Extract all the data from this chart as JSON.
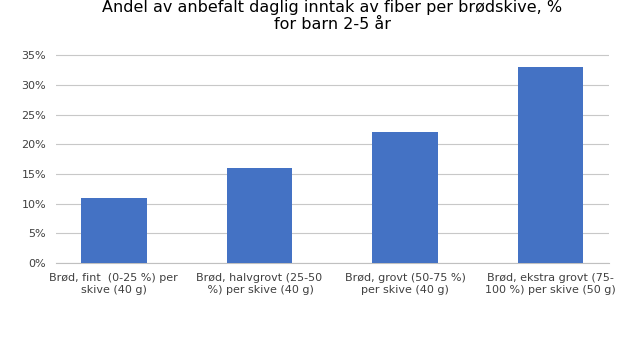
{
  "title": "Andel av anbefalt daglig inntak av fiber per brødskive, %\nfor barn 2-5 år",
  "categories": [
    "Brød, fint  (0-25 %) per\nskive (40 g)",
    "Brød, halvgrovt (25-50\n %) per skive (40 g)",
    "Brød, grovt (50-75 %)\nper skive (40 g)",
    "Brød, ekstra grovt (75-\n100 %) per skive (50 g)"
  ],
  "values": [
    0.11,
    0.16,
    0.22,
    0.33
  ],
  "bar_color": "#4472C4",
  "ylim": [
    0,
    0.375
  ],
  "yticks": [
    0,
    0.05,
    0.1,
    0.15,
    0.2,
    0.25,
    0.3,
    0.35
  ],
  "ytick_labels": [
    "0%",
    "5%",
    "10%",
    "15%",
    "20%",
    "25%",
    "30%",
    "35%"
  ],
  "background_color": "#ffffff",
  "grid_color": "#c8c8c8",
  "title_fontsize": 11.5,
  "tick_fontsize": 8,
  "bar_width": 0.45
}
